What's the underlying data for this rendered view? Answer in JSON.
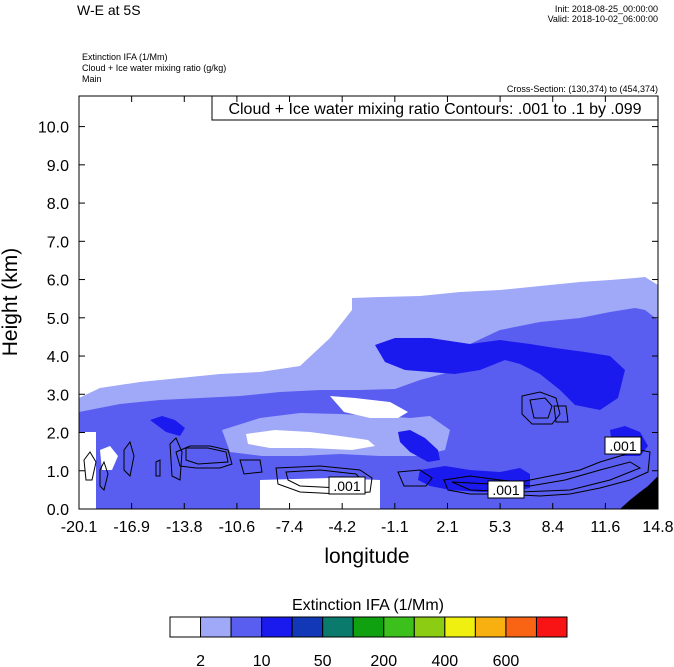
{
  "header": {
    "title": "W-E at 5S",
    "init": "Init: 2018-08-25_00:00:00",
    "valid": "Valid: 2018-10-02_06:00:00",
    "field1": "Extinction IFA   (1/Mm)",
    "field2": "Cloud + Ice water mixing ratio   (g/kg)",
    "field3": "Main",
    "cross_section": "Cross-Section: (130,374) to (454,374)"
  },
  "chart_data": {
    "type": "contour",
    "title": "W-E at 5S",
    "contour_info": "Cloud + Ice water mixing ratio Contours: .001 to .1 by .099",
    "xlabel": "longitude",
    "ylabel": "Height (km)",
    "xlim": [
      -20.1,
      14.8
    ],
    "ylim": [
      0.0,
      10.8
    ],
    "x_ticks": [
      "-20.1",
      "-16.9",
      "-13.8",
      "-10.6",
      "-7.4",
      "-4.2",
      "-1.1",
      "2.1",
      "5.3",
      "8.4",
      "11.6",
      "14.8"
    ],
    "y_ticks": [
      "0.0",
      "1.0",
      "2.0",
      "3.0",
      "4.0",
      "5.0",
      "6.0",
      "7.0",
      "8.0",
      "9.0",
      "10.0"
    ],
    "contour_labels": [
      ".001",
      ".001",
      ".001"
    ],
    "colorbar": {
      "title": "Extinction IFA  (1/Mm)",
      "colors": [
        "#ffffff",
        "#a0a8f8",
        "#5a5ef0",
        "#1a1aee",
        "#1238b8",
        "#0a7a6c",
        "#0fa10f",
        "#3cc01c",
        "#8ccc12",
        "#f0f010",
        "#f8b010",
        "#f86414",
        "#f81414"
      ],
      "tick_labels": [
        "2",
        "10",
        "50",
        "200",
        "400",
        "600"
      ]
    },
    "colors": {
      "light": "#a0a8f8",
      "medium": "#5a5ef0",
      "dark": "#1a1aee",
      "terrain": "#000000"
    }
  }
}
